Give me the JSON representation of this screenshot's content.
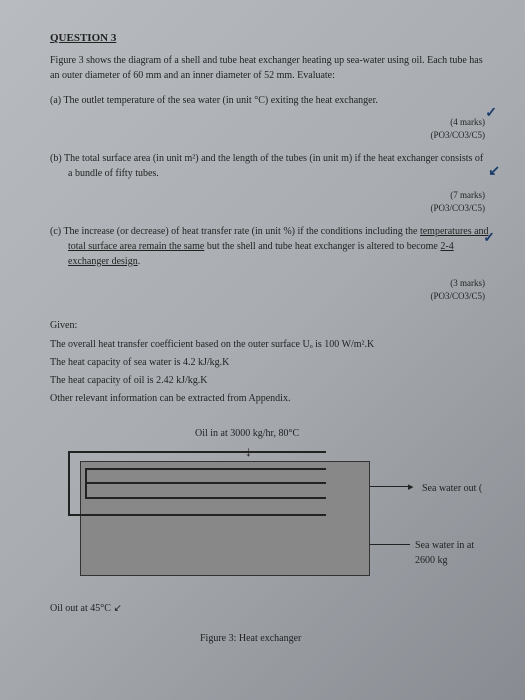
{
  "question": {
    "title": "QUESTION 3",
    "intro": "Figure 3 shows the diagram of a shell and tube heat exchanger heating up sea-water using oil. Each tube has an outer diameter of 60 mm and an inner diameter of 52 mm. Evaluate:",
    "parts": {
      "a": {
        "label": "(a)",
        "text": "The outlet temperature of the sea water (in unit °C) exiting the heat exchanger.",
        "marks": "(4 marks)",
        "po": "(PO3/CO3/C5)"
      },
      "b": {
        "label": "(b)",
        "text": "The total surface area (in unit m²) and the length of the tubes (in unit m) if the heat exchanger consists of a bundle of fifty tubes.",
        "marks": "(7 marks)",
        "po": "(PO3/CO3/C5)"
      },
      "c": {
        "label": "(c)",
        "text_1": "The increase (or decrease) of heat transfer rate (in unit %) if the conditions including the ",
        "text_u1": "temperatures and total surface area remain the same",
        "text_2": " but the shell and tube heat exchanger is altered to become ",
        "text_u2": "2-4 exchanger design",
        "text_3": ".",
        "marks": "(3 marks)",
        "po": "(PO3/CO3/C5)"
      }
    }
  },
  "given": {
    "header": "Given:",
    "line1": "The overall heat transfer coefficient based on the outer surface Uₒ is 100 W/m².K",
    "line2": "The heat capacity of sea water is 4.2 kJ/kg.K",
    "line3": "The heat capacity of oil is 2.42 kJ/kg.K",
    "line4": "Other relevant information can be extracted from Appendix."
  },
  "diagram": {
    "oil_in": "Oil in at 3000 kg/hr, 80°C",
    "seawater_out": "Sea water out  (",
    "seawater_in": "Sea water in at 2600 kg",
    "oil_out": "Oil out at 45°C",
    "caption": "Figure 3: Heat exchanger",
    "colors": {
      "box_bg": "#888888",
      "border": "#222222"
    }
  },
  "hw": {
    "check": "✓",
    "scribble": "↙"
  }
}
